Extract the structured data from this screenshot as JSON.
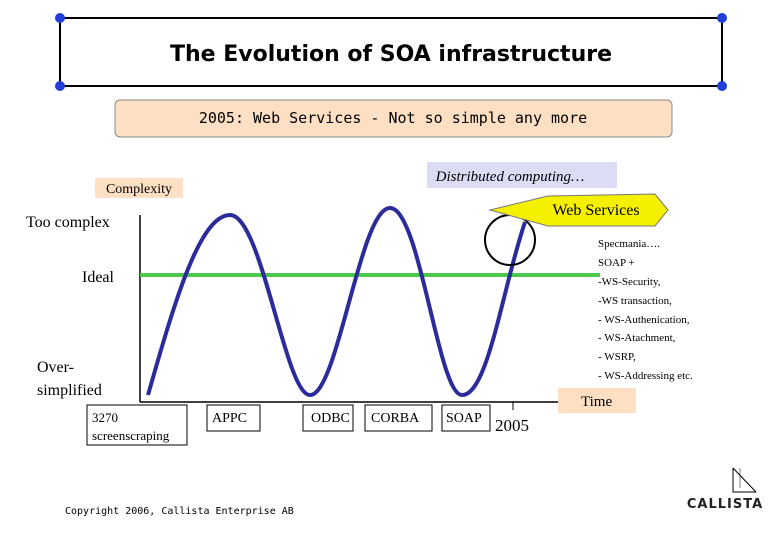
{
  "header": {
    "title": "The Evolution of SOA infrastructure",
    "subtitle": "2005: Web Services - Not so simple any more"
  },
  "diagram": {
    "callout": "Distributed computing…",
    "y_axis_label": "Complexity",
    "x_axis_label": "Time",
    "highlight": "Web Services",
    "levels": {
      "high": "Too complex",
      "ideal": "Ideal",
      "low": [
        "Over-",
        "simplified"
      ]
    },
    "eras": [
      {
        "label": [
          "3270",
          "screenscraping"
        ]
      },
      {
        "label": [
          "APPC"
        ]
      },
      {
        "label": [
          "ODBC"
        ]
      },
      {
        "label": [
          "CORBA"
        ]
      },
      {
        "label": [
          "SOAP"
        ]
      }
    ],
    "year": "2005",
    "notes": [
      "Specmania….",
      "SOAP +",
      "-WS-Security,",
      "-WS transaction,",
      "- WS-Authenication,",
      "- WS-Atachment,",
      "- WSRP,",
      "- WS-Addressing etc."
    ]
  },
  "footer": {
    "copyright": "Copyright 2006, Callista Enterprise AB",
    "logo": "CALLISTA"
  }
}
